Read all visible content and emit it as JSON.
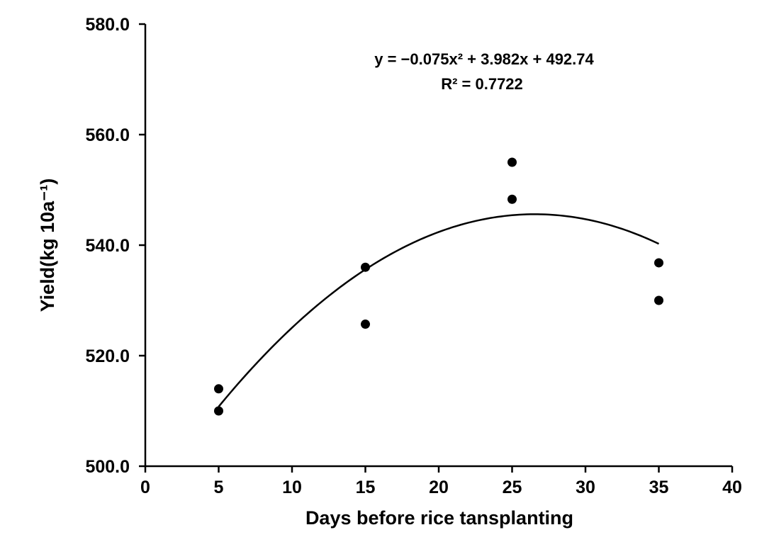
{
  "chart_data": {
    "type": "scatter",
    "xlabel": "Days before rice tansplanting",
    "ylabel": "Yield(kg 10a⁻¹)",
    "xlim": [
      0,
      40
    ],
    "ylim": [
      500,
      580
    ],
    "x_ticks": [
      "0",
      "5",
      "10",
      "15",
      "20",
      "25",
      "30",
      "35",
      "40"
    ],
    "y_ticks": [
      "500.0",
      "520.0",
      "540.0",
      "560.0",
      "580.0"
    ],
    "grid": false,
    "points": [
      {
        "x": 5,
        "y": 514
      },
      {
        "x": 5,
        "y": 510
      },
      {
        "x": 15,
        "y": 536
      },
      {
        "x": 15,
        "y": 525.7
      },
      {
        "x": 25,
        "y": 555
      },
      {
        "x": 25,
        "y": 548.3
      },
      {
        "x": 35,
        "y": 536.8
      },
      {
        "x": 35,
        "y": 530
      }
    ],
    "trendline": {
      "type": "polynomial",
      "coefficients": [
        -0.075,
        3.982,
        492.74
      ],
      "x_range": [
        5,
        35
      ]
    },
    "annotation": {
      "equation": "y = −0.075x² + 3.982x + 492.74",
      "r2": "R²   = 0.7722"
    },
    "marker_color": "#000000",
    "line_color": "#000000"
  }
}
